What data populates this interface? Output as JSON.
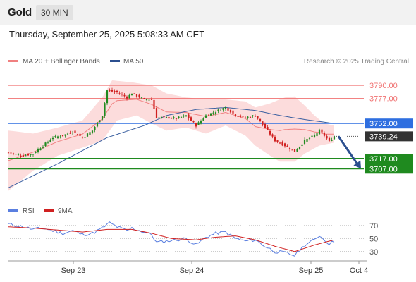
{
  "header": {
    "title": "Gold",
    "timeframe": "30 MIN",
    "timestamp": "Thursday, September 25, 2025 5:08:33 AM CET"
  },
  "legend": {
    "items": [
      {
        "label": "MA 20 + Bollinger Bands",
        "color": "#f08080"
      },
      {
        "label": "MA 50",
        "color": "#2b4f8f"
      }
    ],
    "credit": "Research © 2025 Trading Central"
  },
  "colors": {
    "resistance": "#f07070",
    "pivot": "#2f6fe0",
    "support": "#1f8a1f",
    "current": "#333333",
    "candle_up": "#1f8a1f",
    "candle_down": "#d02020",
    "bollinger_fill": "#fbd6d6",
    "rsi": "#5a7fe0",
    "rsi_ma": "#d02020",
    "arrow": "#2b4f8f"
  },
  "chart_data": [
    {
      "type": "candlestick",
      "x_labels": [
        "Sep 23",
        "Sep 24",
        "Sep 25",
        "Oct 4"
      ],
      "y_range": [
        3677,
        3802
      ],
      "levels": [
        {
          "label": "3790.00",
          "value": 3790.0,
          "kind": "resistance"
        },
        {
          "label": "3777.00",
          "value": 3777.0,
          "kind": "resistance"
        },
        {
          "label": "3752.00",
          "value": 3752.0,
          "kind": "pivot"
        },
        {
          "label": "3739.24",
          "value": 3739.24,
          "kind": "current"
        },
        {
          "label": "3717.00",
          "value": 3717.0,
          "kind": "support"
        },
        {
          "label": "3707.00",
          "value": 3707.0,
          "kind": "support"
        }
      ],
      "close_anchors": [
        [
          0,
          3723
        ],
        [
          6,
          3720
        ],
        [
          10,
          3722
        ],
        [
          14,
          3730
        ],
        [
          18,
          3738
        ],
        [
          22,
          3740
        ],
        [
          26,
          3744
        ],
        [
          30,
          3738
        ],
        [
          34,
          3745
        ],
        [
          38,
          3760
        ],
        [
          40,
          3785
        ],
        [
          44,
          3783
        ],
        [
          48,
          3778
        ],
        [
          50,
          3782
        ],
        [
          55,
          3776
        ],
        [
          58,
          3776
        ],
        [
          60,
          3758
        ],
        [
          64,
          3758
        ],
        [
          68,
          3757
        ],
        [
          72,
          3760
        ],
        [
          76,
          3750
        ],
        [
          80,
          3760
        ],
        [
          84,
          3764
        ],
        [
          88,
          3768
        ],
        [
          92,
          3760
        ],
        [
          96,
          3758
        ],
        [
          100,
          3760
        ],
        [
          104,
          3748
        ],
        [
          108,
          3735
        ],
        [
          112,
          3730
        ],
        [
          116,
          3724
        ],
        [
          120,
          3735
        ],
        [
          124,
          3740
        ],
        [
          126,
          3745
        ],
        [
          128,
          3740
        ],
        [
          130,
          3734
        ],
        [
          132,
          3739
        ]
      ],
      "bollinger_upper_anchors": [
        [
          0,
          3745
        ],
        [
          10,
          3742
        ],
        [
          20,
          3748
        ],
        [
          30,
          3755
        ],
        [
          38,
          3778
        ],
        [
          42,
          3795
        ],
        [
          50,
          3793
        ],
        [
          58,
          3790
        ],
        [
          64,
          3782
        ],
        [
          72,
          3778
        ],
        [
          80,
          3776
        ],
        [
          88,
          3776
        ],
        [
          96,
          3774
        ],
        [
          100,
          3768
        ],
        [
          106,
          3772
        ],
        [
          112,
          3778
        ],
        [
          116,
          3779
        ],
        [
          120,
          3770
        ],
        [
          124,
          3760
        ],
        [
          128,
          3752
        ],
        [
          132,
          3750
        ]
      ],
      "bollinger_lower_anchors": [
        [
          0,
          3685
        ],
        [
          10,
          3705
        ],
        [
          20,
          3720
        ],
        [
          30,
          3728
        ],
        [
          38,
          3735
        ],
        [
          44,
          3755
        ],
        [
          52,
          3760
        ],
        [
          58,
          3752
        ],
        [
          64,
          3745
        ],
        [
          72,
          3748
        ],
        [
          80,
          3742
        ],
        [
          88,
          3750
        ],
        [
          96,
          3740
        ],
        [
          100,
          3730
        ],
        [
          106,
          3720
        ],
        [
          110,
          3714
        ],
        [
          116,
          3714
        ],
        [
          120,
          3722
        ],
        [
          126,
          3730
        ],
        [
          132,
          3733
        ]
      ],
      "ma50_anchors": [
        [
          0,
          3688
        ],
        [
          20,
          3712
        ],
        [
          40,
          3738
        ],
        [
          55,
          3750
        ],
        [
          64,
          3760
        ],
        [
          76,
          3766
        ],
        [
          88,
          3768
        ],
        [
          100,
          3765
        ],
        [
          110,
          3760
        ],
        [
          120,
          3756
        ],
        [
          132,
          3752
        ]
      ],
      "projection": {
        "from": 3739.24,
        "to": 3707.0
      }
    },
    {
      "type": "line",
      "title": "RSI",
      "series": [
        {
          "name": "RSI",
          "color": "#5a7fe0"
        },
        {
          "name": "9MA",
          "color": "#d02020"
        }
      ],
      "y_ticks": [
        "70",
        "50",
        "30"
      ],
      "y_range": [
        20,
        85
      ],
      "rsi_anchors": [
        [
          0,
          72
        ],
        [
          6,
          68
        ],
        [
          10,
          64
        ],
        [
          14,
          66
        ],
        [
          18,
          62
        ],
        [
          22,
          58
        ],
        [
          26,
          62
        ],
        [
          30,
          56
        ],
        [
          34,
          58
        ],
        [
          38,
          66
        ],
        [
          41,
          74
        ],
        [
          44,
          68
        ],
        [
          48,
          62
        ],
        [
          50,
          66
        ],
        [
          55,
          60
        ],
        [
          58,
          56
        ],
        [
          60,
          44
        ],
        [
          64,
          46
        ],
        [
          68,
          48
        ],
        [
          72,
          50
        ],
        [
          76,
          40
        ],
        [
          80,
          52
        ],
        [
          84,
          58
        ],
        [
          88,
          60
        ],
        [
          92,
          50
        ],
        [
          96,
          46
        ],
        [
          100,
          48
        ],
        [
          104,
          38
        ],
        [
          108,
          30
        ],
        [
          112,
          28
        ],
        [
          116,
          24
        ],
        [
          120,
          40
        ],
        [
          124,
          48
        ],
        [
          126,
          55
        ],
        [
          128,
          48
        ],
        [
          130,
          42
        ],
        [
          132,
          46
        ]
      ],
      "ma_anchors": [
        [
          0,
          68
        ],
        [
          10,
          66
        ],
        [
          20,
          63
        ],
        [
          30,
          60
        ],
        [
          40,
          64
        ],
        [
          50,
          64
        ],
        [
          58,
          58
        ],
        [
          66,
          50
        ],
        [
          76,
          48
        ],
        [
          84,
          52
        ],
        [
          92,
          54
        ],
        [
          100,
          48
        ],
        [
          108,
          38
        ],
        [
          116,
          30
        ],
        [
          124,
          40
        ],
        [
          132,
          48
        ]
      ]
    }
  ]
}
